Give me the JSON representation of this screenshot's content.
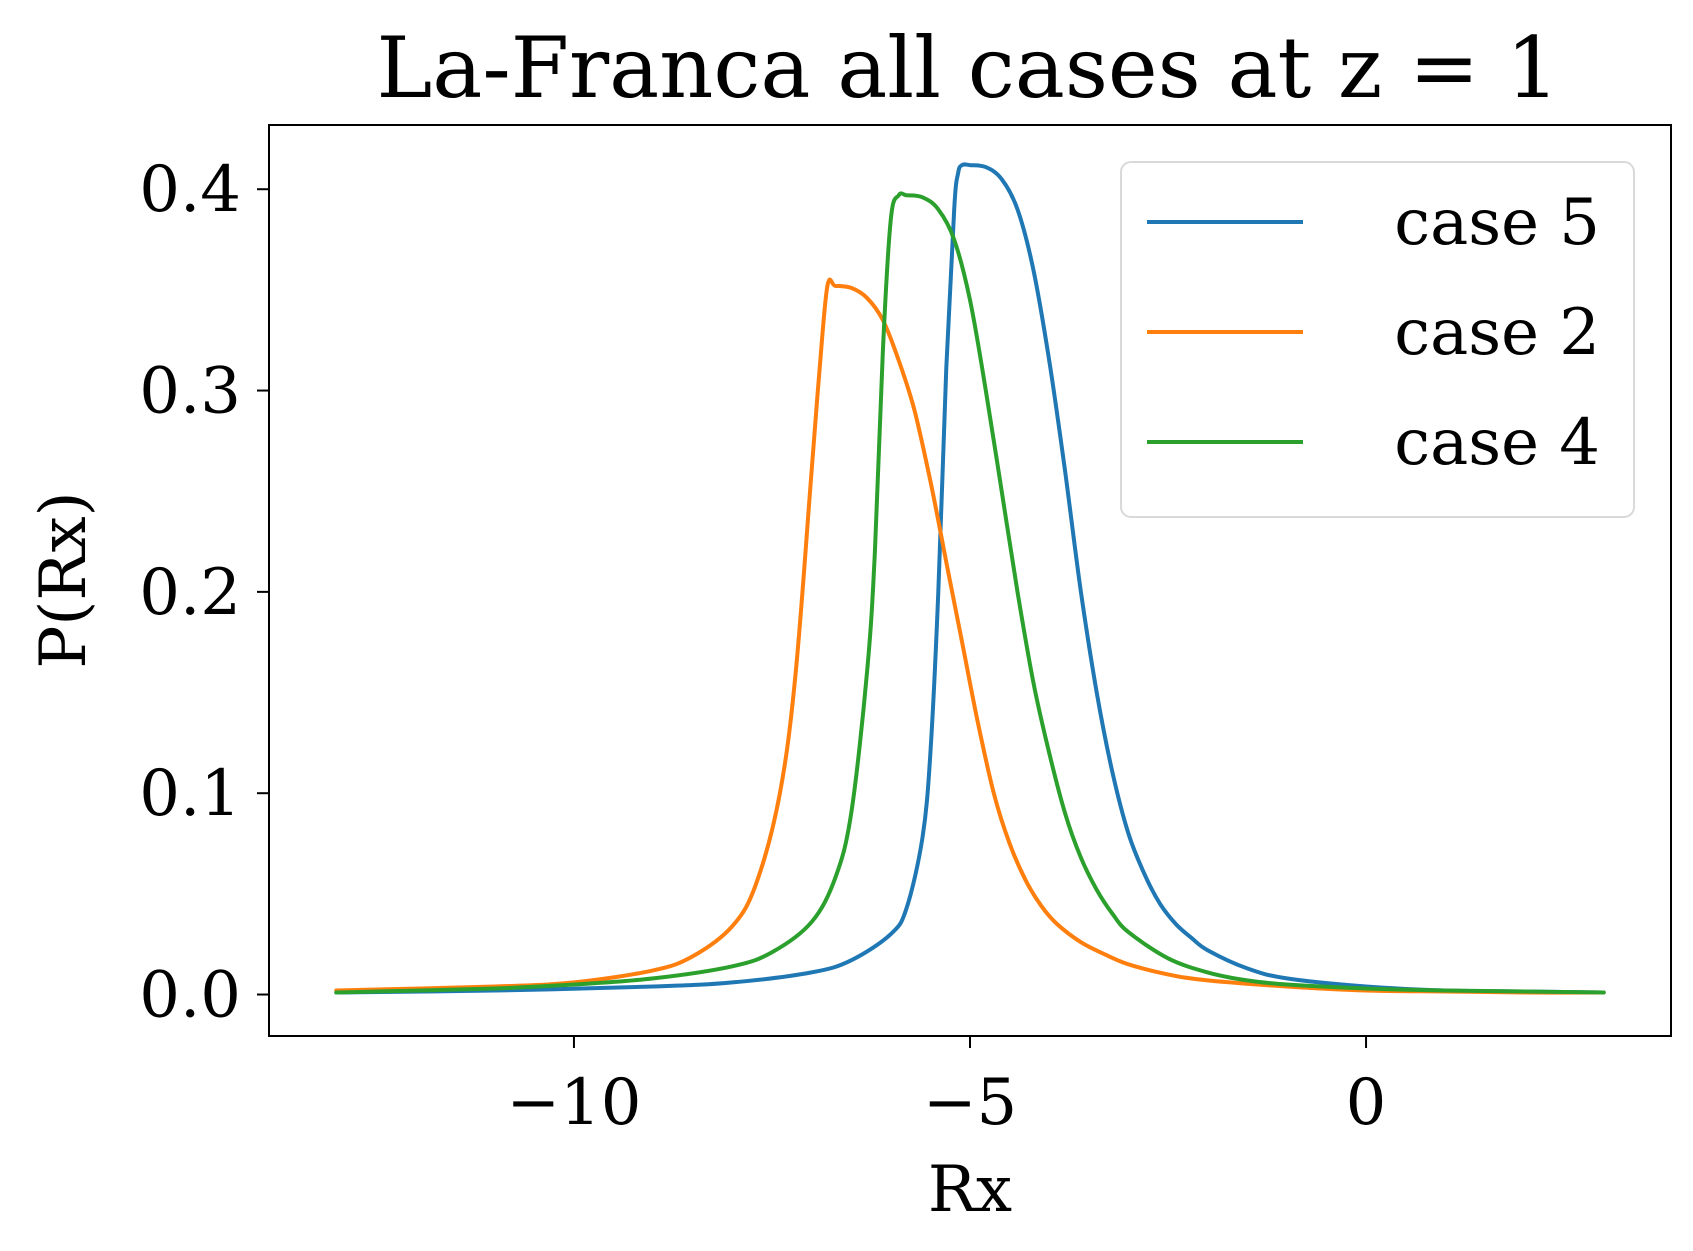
{
  "chart_data": {
    "type": "line",
    "title": "La-Franca all cases at z = 1",
    "xlabel": "Rx",
    "ylabel": "P(Rx)",
    "xlim": [
      -13.85,
      3.85
    ],
    "ylim": [
      -0.0206,
      0.4319
    ],
    "xticks": [
      -10,
      -5,
      0
    ],
    "xtick_labels": [
      "−10",
      "−5",
      "0"
    ],
    "yticks": [
      0.0,
      0.1,
      0.2,
      0.3,
      0.4
    ],
    "ytick_labels": [
      "0.0",
      "0.1",
      "0.2",
      "0.3",
      "0.4"
    ],
    "grid": false,
    "legend_position": "top-right",
    "series": [
      {
        "name": "case 5",
        "color": "#1f77b4",
        "x": [
          -13.0,
          -11.0,
          -9.0,
          -8.0,
          -7.0,
          -6.5,
          -6.0,
          -5.8,
          -5.6,
          -5.5,
          -5.4,
          -5.3,
          -5.2,
          -5.15,
          -5.1,
          -5.0,
          -4.8,
          -4.6,
          -4.4,
          -4.2,
          -4.0,
          -3.8,
          -3.6,
          -3.4,
          -3.2,
          -3.0,
          -2.8,
          -2.6,
          -2.4,
          -2.2,
          -2.0,
          -1.5,
          -1.0,
          0.0,
          1.0,
          2.0,
          3.0
        ],
        "y": [
          0.001,
          0.002,
          0.004,
          0.006,
          0.011,
          0.017,
          0.03,
          0.043,
          0.078,
          0.12,
          0.2,
          0.31,
          0.39,
          0.408,
          0.412,
          0.412,
          0.411,
          0.405,
          0.39,
          0.36,
          0.315,
          0.26,
          0.2,
          0.15,
          0.11,
          0.08,
          0.06,
          0.045,
          0.035,
          0.028,
          0.022,
          0.013,
          0.008,
          0.004,
          0.002,
          0.0015,
          0.001
        ]
      },
      {
        "name": "case 2",
        "color": "#ff7f0e",
        "x": [
          -13.0,
          -11.0,
          -10.0,
          -9.0,
          -8.5,
          -8.0,
          -7.7,
          -7.4,
          -7.2,
          -7.0,
          -6.9,
          -6.8,
          -6.7,
          -6.5,
          -6.3,
          -6.1,
          -5.9,
          -5.7,
          -5.5,
          -5.3,
          -5.1,
          -4.9,
          -4.7,
          -4.5,
          -4.3,
          -4.1,
          -3.9,
          -3.6,
          -3.3,
          -3.0,
          -2.5,
          -2.0,
          -1.0,
          0.0,
          1.0,
          2.0,
          3.0
        ],
        "y": [
          0.002,
          0.004,
          0.006,
          0.012,
          0.019,
          0.034,
          0.055,
          0.1,
          0.16,
          0.26,
          0.31,
          0.352,
          0.352,
          0.351,
          0.346,
          0.335,
          0.315,
          0.29,
          0.255,
          0.215,
          0.175,
          0.135,
          0.1,
          0.075,
          0.057,
          0.044,
          0.035,
          0.026,
          0.02,
          0.015,
          0.01,
          0.007,
          0.004,
          0.002,
          0.0015,
          0.001,
          0.001
        ]
      },
      {
        "name": "case 4",
        "color": "#2ca02c",
        "x": [
          -13.0,
          -11.0,
          -10.0,
          -9.0,
          -8.0,
          -7.5,
          -7.0,
          -6.7,
          -6.5,
          -6.3,
          -6.2,
          -6.1,
          -6.0,
          -5.9,
          -5.8,
          -5.6,
          -5.4,
          -5.2,
          -5.0,
          -4.8,
          -4.6,
          -4.4,
          -4.2,
          -4.0,
          -3.8,
          -3.6,
          -3.4,
          -3.2,
          -3.0,
          -2.5,
          -2.0,
          -1.5,
          -1.0,
          0.0,
          1.0,
          2.0,
          3.0
        ],
        "y": [
          0.001,
          0.003,
          0.005,
          0.008,
          0.014,
          0.021,
          0.036,
          0.058,
          0.09,
          0.16,
          0.22,
          0.32,
          0.385,
          0.397,
          0.397,
          0.396,
          0.39,
          0.375,
          0.345,
          0.3,
          0.25,
          0.2,
          0.155,
          0.12,
          0.09,
          0.068,
          0.052,
          0.04,
          0.031,
          0.018,
          0.011,
          0.007,
          0.005,
          0.003,
          0.002,
          0.0015,
          0.001
        ]
      }
    ]
  }
}
